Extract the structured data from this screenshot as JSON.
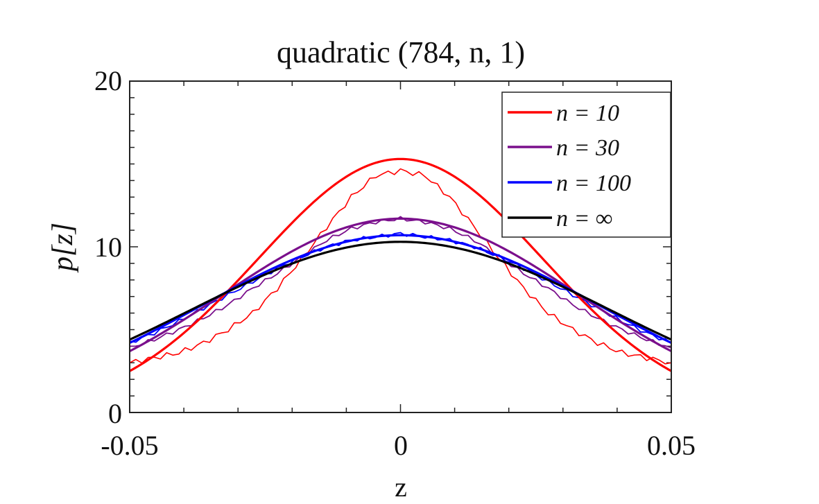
{
  "chart_data": {
    "type": "line",
    "title": "quadratic (784, n, 1)",
    "xlabel": "z",
    "ylabel": "p[z]",
    "xlim": [
      -0.05,
      0.05
    ],
    "ylim": [
      0,
      20
    ],
    "xticks": [
      -0.05,
      0,
      0.05
    ],
    "xtick_labels": [
      "-0.05",
      "0",
      "0.05"
    ],
    "yticks": [
      0,
      10,
      20
    ],
    "ytick_labels": [
      "0",
      "10",
      "20"
    ],
    "legend_position": "top-right",
    "series": [
      {
        "name": "n = 10",
        "legend_label": "n = 10",
        "color": "#ff0000",
        "peak": 15.3,
        "edge_value": 2.5,
        "empirical_values": [
          3.0,
          3.3,
          3.6,
          4.2,
          5.0,
          6.0,
          7.5,
          9.3,
          11.2,
          13.0,
          14.3,
          14.6,
          14.3,
          13.0,
          11.2,
          9.3,
          7.5,
          6.0,
          5.0,
          4.2,
          3.6,
          3.3,
          3.0
        ]
      },
      {
        "name": "n = 30",
        "legend_label": "n = 30",
        "color": "#7a0f8c",
        "peak": 11.7,
        "edge_value": 3.7,
        "empirical_values": [
          3.9,
          4.4,
          5.0,
          5.7,
          6.5,
          7.5,
          8.4,
          9.4,
          10.4,
          11.1,
          11.5,
          11.7,
          11.5,
          11.1,
          10.4,
          9.4,
          8.4,
          7.5,
          6.5,
          5.7,
          5.0,
          4.4,
          3.9
        ]
      },
      {
        "name": "n = 100",
        "legend_label": "n = 100",
        "color": "#0000ff",
        "peak": 10.7,
        "edge_value": 4.2,
        "empirical_values": [
          4.2,
          4.8,
          5.5,
          6.3,
          7.1,
          7.9,
          8.7,
          9.4,
          10.0,
          10.4,
          10.6,
          10.8,
          10.6,
          10.4,
          10.0,
          9.4,
          8.7,
          7.9,
          7.1,
          6.3,
          5.5,
          4.8,
          4.2
        ]
      },
      {
        "name": "n = ∞",
        "legend_label": "n = ∞",
        "color": "#000000",
        "peak": 10.3,
        "edge_value": 4.4
      }
    ]
  }
}
